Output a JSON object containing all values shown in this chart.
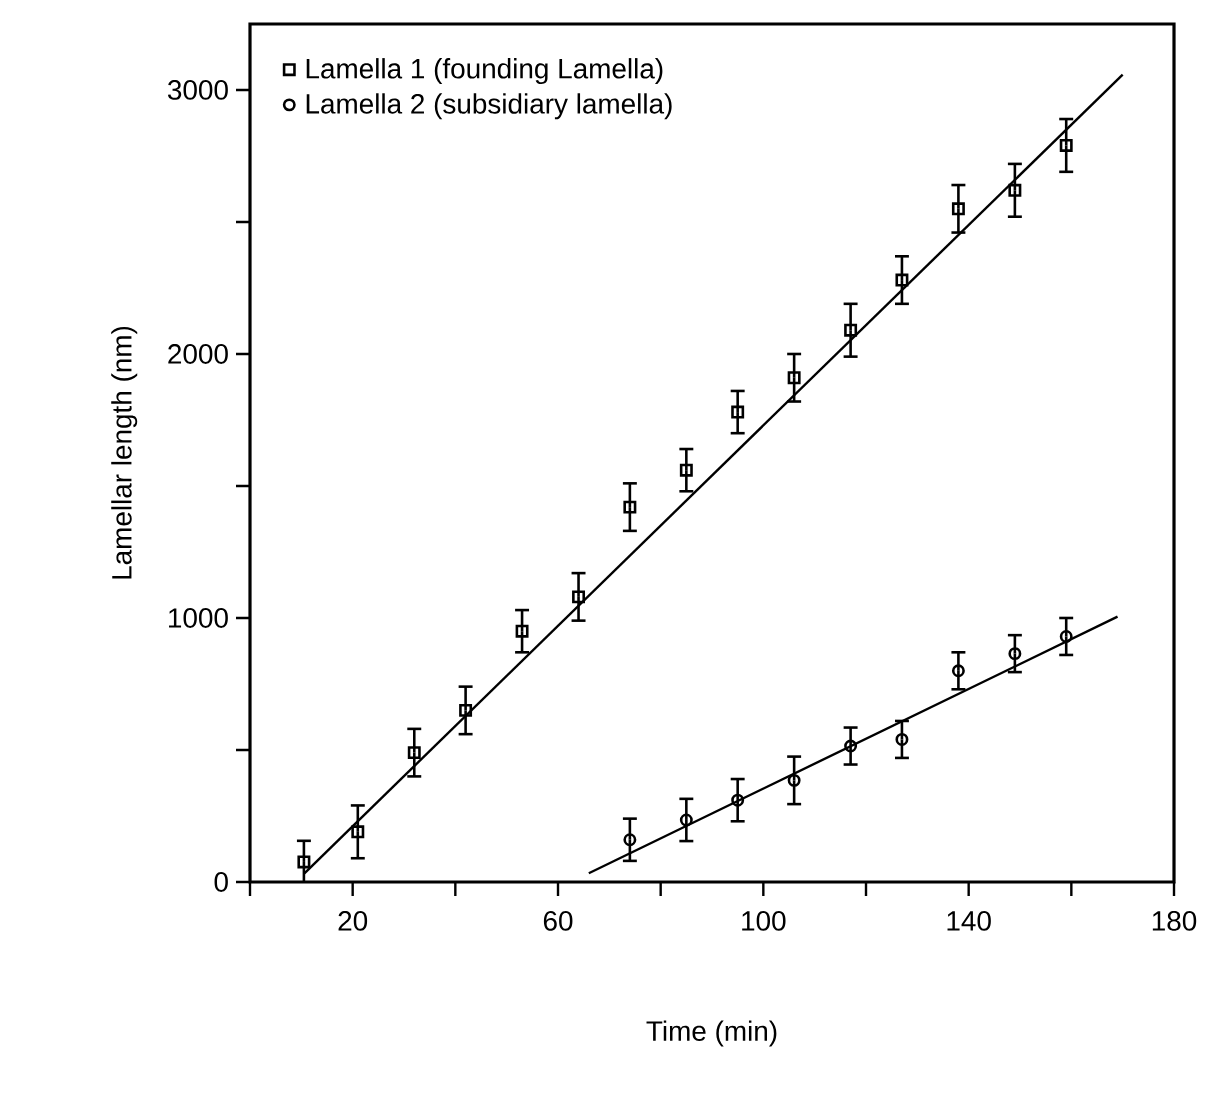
{
  "chart_data": {
    "type": "scatter",
    "xlabel": "Time (min)",
    "ylabel": "Lamellar  length (nm)",
    "xlim": [
      0,
      180
    ],
    "ylim": [
      0,
      3250
    ],
    "xticks": [
      {
        "value": 0,
        "label": null
      },
      20,
      {
        "value": 40,
        "label": null
      },
      60,
      {
        "value": 80,
        "label": null
      },
      100,
      {
        "value": 120,
        "label": null
      },
      140,
      {
        "value": 160,
        "label": null
      },
      180
    ],
    "yticks": [
      0,
      {
        "value": 500,
        "label": null
      },
      1000,
      {
        "value": 1500,
        "label": null
      },
      2000,
      {
        "value": 2500,
        "label": null
      },
      3000
    ],
    "grid": false,
    "legend": "top left",
    "series": [
      {
        "name": "Lamella 1 (founding Lamella)",
        "marker": "square",
        "color": "#000000",
        "x": [
          10.5,
          21,
          32,
          42,
          53,
          64,
          74,
          85,
          95,
          106,
          117,
          127,
          138,
          149,
          159
        ],
        "values": [
          76,
          190,
          490,
          650,
          950,
          1080,
          1420,
          1560,
          1780,
          1910,
          2090,
          2280,
          2550,
          2620,
          2790
        ],
        "errors": [
          80,
          100,
          90,
          90,
          80,
          90,
          90,
          80,
          80,
          90,
          100,
          90,
          90,
          100,
          100
        ]
      },
      {
        "name": "Lamella 2 (subsidiary lamella)",
        "marker": "circle",
        "color": "#000000",
        "x": [
          74,
          85,
          95,
          106,
          117,
          127,
          138,
          149,
          159
        ],
        "values": [
          160,
          235,
          310,
          385,
          515,
          540,
          800,
          865,
          930
        ],
        "errors": [
          80,
          80,
          80,
          90,
          70,
          70,
          70,
          70,
          70
        ]
      },
      {
        "type": "line",
        "marker": "none",
        "line_style": "solid",
        "color": "#000000",
        "x": [
          10.6,
          170
        ],
        "values": [
          33,
          3058
        ]
      },
      {
        "type": "line",
        "marker": "none",
        "line_style": "solid",
        "color": "#000000",
        "x": [
          66,
          169
        ],
        "values": [
          33,
          1005
        ]
      }
    ]
  }
}
